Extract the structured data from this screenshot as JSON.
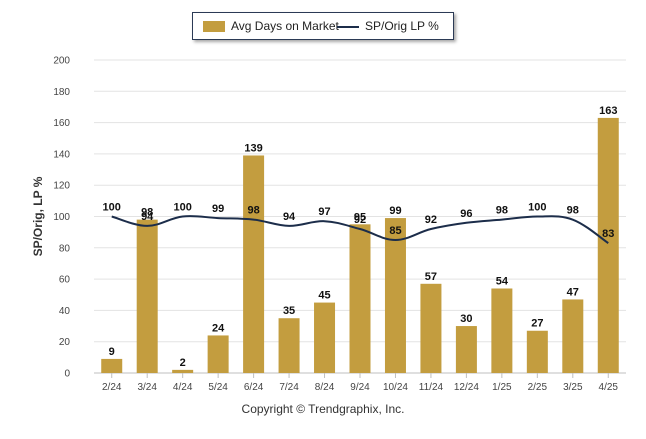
{
  "chart_data": {
    "type": "bar",
    "categories": [
      "2/24",
      "3/24",
      "4/24",
      "5/24",
      "6/24",
      "7/24",
      "8/24",
      "9/24",
      "10/24",
      "11/24",
      "12/24",
      "1/25",
      "2/25",
      "3/25",
      "4/25"
    ],
    "series": [
      {
        "name": "Avg Days on Market",
        "type": "bar",
        "color": "#c39d3f",
        "values": [
          9,
          98,
          2,
          24,
          139,
          35,
          45,
          95,
          99,
          57,
          30,
          54,
          27,
          47,
          163
        ]
      },
      {
        "name": "SP/Orig LP %",
        "type": "line",
        "color": "#1c2d4a",
        "values": [
          100,
          94,
          100,
          99,
          98,
          94,
          97,
          92,
          85,
          92,
          96,
          98,
          100,
          98,
          83
        ]
      }
    ],
    "ylabel": "SP/Orig, LP %",
    "ylim": [
      0,
      200
    ],
    "yticks": [
      0,
      20,
      40,
      60,
      80,
      100,
      120,
      140,
      160,
      180,
      200
    ],
    "grid": true,
    "legend_position": "top"
  },
  "footer": "Copyright © Trendgraphix, Inc."
}
